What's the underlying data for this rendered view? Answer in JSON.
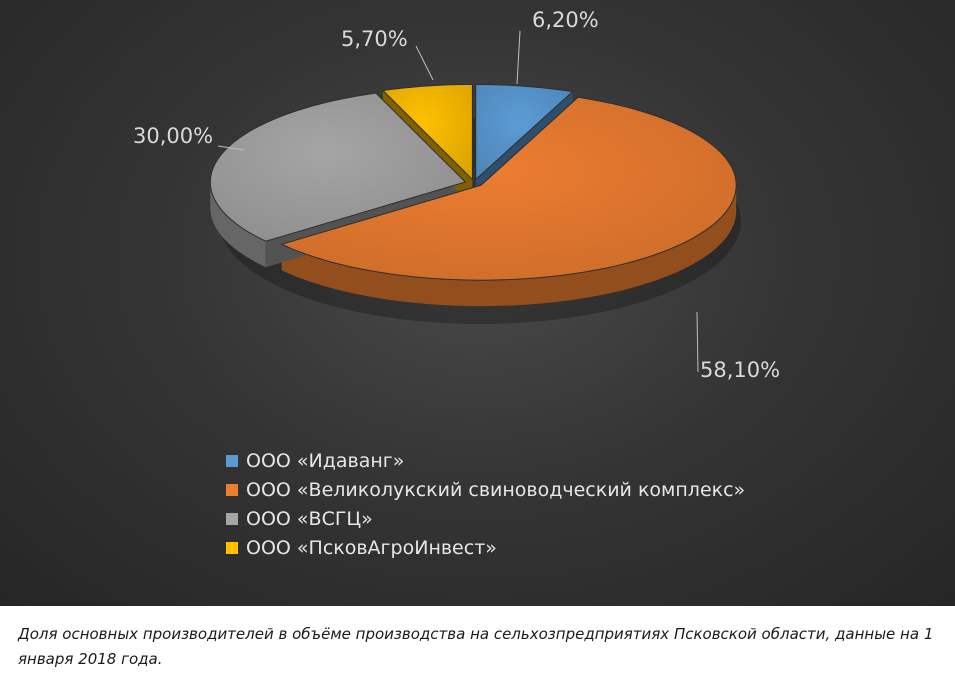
{
  "chart_data": {
    "type": "pie",
    "style": "3d-exploded",
    "series": [
      {
        "name": "ООО «Идаванг»",
        "value": 6.2,
        "label": "6,20%",
        "color": "#5b9bd5"
      },
      {
        "name": "ООО «Великолукский свиноводческий комплекс»",
        "value": 58.1,
        "label": "58,10%",
        "color": "#ed7d31"
      },
      {
        "name": "ООО «ВСГЦ»",
        "value": 30.0,
        "label": "30,00%",
        "color": "#a5a5a5"
      },
      {
        "name": "ООО «ПсковАгроИнвест»",
        "value": 5.7,
        "label": "5,70%",
        "color": "#ffc000"
      }
    ],
    "legend_position": "bottom",
    "background": "#333333"
  },
  "caption": "Доля основных производителей в объёме производства на сельхозпредприятиях Псковской области, данные на 1 января 2018 года."
}
